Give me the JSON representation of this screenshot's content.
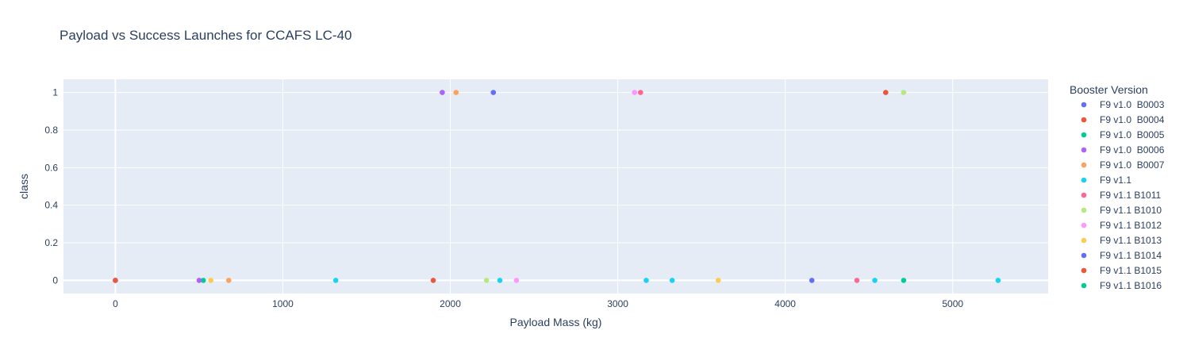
{
  "chart_data": {
    "type": "scatter",
    "title": "Payload vs Success Launches for CCAFS LC-40",
    "xlabel": "Payload Mass (kg)",
    "ylabel": "class",
    "xlim": [
      -310,
      5570
    ],
    "ylim": [
      -0.07,
      1.07
    ],
    "xticks": [
      0,
      1000,
      2000,
      3000,
      4000,
      5000
    ],
    "yticks": [
      0,
      0.2,
      0.4,
      0.6,
      0.8,
      1
    ],
    "ytick_labels": [
      "0",
      "0.2",
      "0.4",
      "0.6",
      "0.8",
      "1"
    ],
    "grid": true,
    "legend": {
      "title": "Booster Version",
      "placement": "right"
    },
    "series": [
      {
        "name": "F9 v1.0  B0003",
        "color": "#636efa",
        "points": [
          [
            0,
            0
          ]
        ]
      },
      {
        "name": "F9 v1.0  B0004",
        "color": "#EF553B",
        "points": [
          [
            0,
            0
          ]
        ]
      },
      {
        "name": "F9 v1.0  B0005",
        "color": "#00cc96",
        "points": [
          [
            525,
            0
          ]
        ]
      },
      {
        "name": "F9 v1.0  B0006",
        "color": "#ab63fa",
        "points": [
          [
            500,
            0
          ],
          [
            1952,
            1
          ]
        ]
      },
      {
        "name": "F9 v1.0  B0007",
        "color": "#FFA15A",
        "points": [
          [
            677,
            0
          ],
          [
            2034,
            1
          ]
        ]
      },
      {
        "name": "F9 v1.1",
        "color": "#19d3f3",
        "points": [
          [
            1316,
            0
          ],
          [
            2296,
            0
          ],
          [
            3170,
            0
          ],
          [
            3325,
            0
          ],
          [
            4535,
            0
          ],
          [
            5271,
            0
          ]
        ]
      },
      {
        "name": "F9 v1.1 B1011",
        "color": "#FF6692",
        "points": [
          [
            4428,
            0
          ],
          [
            3136,
            1
          ]
        ]
      },
      {
        "name": "F9 v1.1 B1010",
        "color": "#B6E880",
        "points": [
          [
            2216,
            0
          ],
          [
            4707,
            1
          ]
        ]
      },
      {
        "name": "F9 v1.1 B1012",
        "color": "#FF97FF",
        "points": [
          [
            2395,
            0
          ],
          [
            3100,
            1
          ]
        ]
      },
      {
        "name": "F9 v1.1 B1013",
        "color": "#FECB52",
        "points": [
          [
            570,
            0
          ],
          [
            3600,
            0
          ]
        ]
      },
      {
        "name": "F9 v1.1 B1014",
        "color": "#636efa",
        "points": [
          [
            4159,
            0
          ],
          [
            2257,
            1
          ]
        ]
      },
      {
        "name": "F9 v1.1 B1015",
        "color": "#EF553B",
        "points": [
          [
            1898,
            0
          ],
          [
            4600,
            1
          ]
        ]
      },
      {
        "name": "F9 v1.1 B1016",
        "color": "#00cc96",
        "points": [
          [
            4707,
            0
          ]
        ]
      }
    ]
  }
}
